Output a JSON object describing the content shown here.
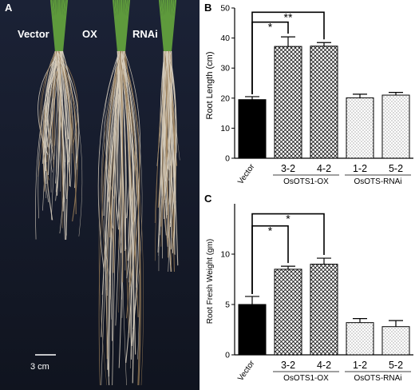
{
  "panel_a": {
    "letter": "A",
    "labels": [
      "Vector",
      "OX",
      "RNAi"
    ],
    "scale_bar": "3 cm"
  },
  "colors": {
    "photo_bg": "#141a2b",
    "root": "#d8cfbe",
    "root_dark": "#9a7e58",
    "leaf": "#5e9a3c"
  },
  "chart_data": [
    {
      "panel": "B",
      "type": "bar",
      "ylabel": "Root Length (cm)",
      "ylim": [
        0,
        50
      ],
      "yticks": [
        0,
        10,
        20,
        30,
        40,
        50
      ],
      "categories": [
        "Vector",
        "3-2",
        "4-2",
        "1-2",
        "5-2"
      ],
      "values": [
        19.5,
        37.2,
        37.3,
        20.1,
        21.0
      ],
      "errors": [
        1.0,
        3.2,
        1.2,
        1.2,
        0.9
      ],
      "fills": [
        "solid",
        "crosshatch",
        "crosshatch",
        "dots",
        "dots"
      ],
      "groups": [
        {
          "label": "OsOTS1-OX",
          "from": 1,
          "to": 2
        },
        {
          "label": "OsOTS-RNAi",
          "from": 3,
          "to": 4
        }
      ],
      "significance": [
        {
          "from": 0,
          "to": 1,
          "label": "*",
          "y": 45.3
        },
        {
          "from": 0,
          "to": 2,
          "label": "**",
          "y": 48.6
        }
      ]
    },
    {
      "panel": "C",
      "type": "bar",
      "ylabel": "Root Fresh Weight (gm)",
      "ylim": [
        0,
        15
      ],
      "yticks": [
        0,
        5,
        10
      ],
      "categories": [
        "Vector",
        "3-2",
        "4-2",
        "1-2",
        "5-2"
      ],
      "values": [
        5.0,
        8.5,
        9.0,
        3.2,
        2.8
      ],
      "errors": [
        0.8,
        0.3,
        0.6,
        0.4,
        0.6
      ],
      "fills": [
        "solid",
        "crosshatch",
        "crosshatch",
        "dots",
        "dots"
      ],
      "groups": [
        {
          "label": "OsOTS1-OX",
          "from": 1,
          "to": 2
        },
        {
          "label": "OsOTS-RNAi",
          "from": 3,
          "to": 4
        }
      ],
      "significance": [
        {
          "from": 0,
          "to": 1,
          "label": "*",
          "y": 12.8
        },
        {
          "from": 0,
          "to": 2,
          "label": "*",
          "y": 14.0
        }
      ]
    }
  ]
}
